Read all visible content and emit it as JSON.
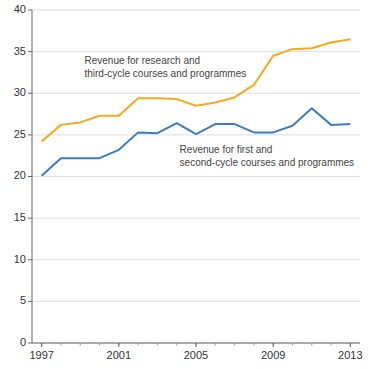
{
  "chart_data": {
    "type": "line",
    "x": [
      1997,
      1998,
      1999,
      2000,
      2001,
      2002,
      2003,
      2004,
      2005,
      2006,
      2007,
      2008,
      2009,
      2010,
      2011,
      2012,
      2013
    ],
    "series": [
      {
        "name": "Revenue for research and\nthird-cycle courses and programmes",
        "color": "#F5A820",
        "values": [
          24.2,
          26.2,
          26.5,
          27.3,
          27.3,
          29.4,
          29.4,
          29.3,
          28.5,
          28.9,
          29.5,
          31.0,
          34.5,
          35.3,
          35.4,
          36.1,
          36.5
        ]
      },
      {
        "name": "Revenue for first and\nsecond-cycle courses and programmes",
        "color": "#3A7DC0",
        "values": [
          20.1,
          22.2,
          22.2,
          22.2,
          23.2,
          25.3,
          25.2,
          26.4,
          25.1,
          26.3,
          26.3,
          25.3,
          25.3,
          26.1,
          28.2,
          26.2,
          26.3
        ]
      }
    ],
    "xlim": [
      1996.5,
      2013.5
    ],
    "ylim": [
      0,
      40
    ],
    "xticks": [
      1997,
      2001,
      2005,
      2009,
      2013
    ],
    "yticks": [
      0,
      5,
      10,
      15,
      20,
      25,
      30,
      35,
      40
    ],
    "grid": true
  }
}
